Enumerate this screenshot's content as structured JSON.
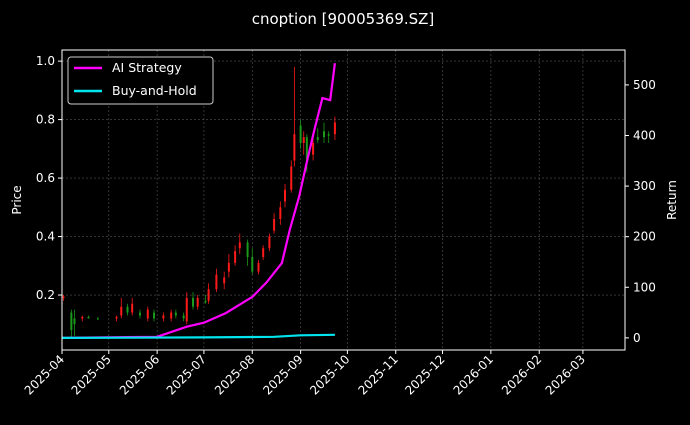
{
  "chart_data": {
    "type": "line",
    "title": "cnoption [90005369.SZ]",
    "ylabel": "Price",
    "y2label": "Return",
    "xlim": [
      "2025-04-01",
      "2026-03-28"
    ],
    "ylim": [
      0.012,
      1.038
    ],
    "y2lim": [
      -24,
      569
    ],
    "xticks": [
      "2025-04",
      "2025-05",
      "2025-06",
      "2025-07",
      "2025-08",
      "2025-09",
      "2025-10",
      "2025-11",
      "2025-12",
      "2026-01",
      "2026-02",
      "2026-03"
    ],
    "yticks": [
      0.2,
      0.4,
      0.6,
      0.8,
      1.0
    ],
    "y2ticks": [
      0,
      100,
      200,
      300,
      400,
      500
    ],
    "grid": true,
    "legend_position": "top-left",
    "colors": {
      "up": "#ff1a1a",
      "down": "#1a9a1a",
      "strategy": "#ff00ff",
      "buyhold": "#00e5ee",
      "background": "#000000"
    },
    "candles": [
      [
        "2025-04-02",
        0.19,
        0.2,
        0.18,
        0.195
      ],
      [
        "2025-04-07",
        0.14,
        0.15,
        0.05,
        0.08
      ],
      [
        "2025-04-09",
        0.12,
        0.15,
        0.06,
        0.1
      ],
      [
        "2025-04-14",
        0.12,
        0.13,
        0.11,
        0.125
      ],
      [
        "2025-04-18",
        0.125,
        0.13,
        0.12,
        0.12
      ],
      [
        "2025-04-24",
        0.12,
        0.125,
        0.115,
        0.118
      ],
      [
        "2025-05-06",
        0.12,
        0.13,
        0.11,
        0.125
      ],
      [
        "2025-05-09",
        0.13,
        0.19,
        0.12,
        0.16
      ],
      [
        "2025-05-13",
        0.16,
        0.17,
        0.13,
        0.14
      ],
      [
        "2025-05-16",
        0.14,
        0.19,
        0.13,
        0.17
      ],
      [
        "2025-05-21",
        0.14,
        0.15,
        0.12,
        0.13
      ],
      [
        "2025-05-26",
        0.12,
        0.16,
        0.11,
        0.15
      ],
      [
        "2025-05-30",
        0.14,
        0.15,
        0.11,
        0.12
      ],
      [
        "2025-06-05",
        0.12,
        0.14,
        0.11,
        0.13
      ],
      [
        "2025-06-10",
        0.12,
        0.15,
        0.11,
        0.14
      ],
      [
        "2025-06-13",
        0.14,
        0.15,
        0.12,
        0.13
      ],
      [
        "2025-06-18",
        0.13,
        0.14,
        0.11,
        0.12
      ],
      [
        "2025-06-20",
        0.11,
        0.21,
        0.1,
        0.19
      ],
      [
        "2025-06-24",
        0.19,
        0.21,
        0.15,
        0.16
      ],
      [
        "2025-06-27",
        0.16,
        0.2,
        0.15,
        0.19
      ],
      [
        "2025-07-02",
        0.18,
        0.2,
        0.17,
        0.175
      ],
      [
        "2025-07-04",
        0.18,
        0.24,
        0.17,
        0.22
      ],
      [
        "2025-07-09",
        0.22,
        0.29,
        0.21,
        0.27
      ],
      [
        "2025-07-14",
        0.24,
        0.28,
        0.22,
        0.26
      ],
      [
        "2025-07-17",
        0.28,
        0.34,
        0.26,
        0.31
      ],
      [
        "2025-07-21",
        0.31,
        0.37,
        0.3,
        0.35
      ],
      [
        "2025-07-24",
        0.36,
        0.41,
        0.34,
        0.38
      ],
      [
        "2025-07-29",
        0.38,
        0.39,
        0.3,
        0.33
      ],
      [
        "2025-08-01",
        0.33,
        0.36,
        0.27,
        0.28
      ],
      [
        "2025-08-05",
        0.28,
        0.32,
        0.27,
        0.31
      ],
      [
        "2025-08-08",
        0.33,
        0.37,
        0.32,
        0.36
      ],
      [
        "2025-08-12",
        0.36,
        0.41,
        0.35,
        0.4
      ],
      [
        "2025-08-15",
        0.42,
        0.48,
        0.41,
        0.46
      ],
      [
        "2025-08-19",
        0.46,
        0.52,
        0.44,
        0.5
      ],
      [
        "2025-08-22",
        0.52,
        0.58,
        0.5,
        0.56
      ],
      [
        "2025-08-26",
        0.56,
        0.66,
        0.55,
        0.64
      ],
      [
        "2025-08-28",
        0.66,
        0.98,
        0.64,
        0.75
      ],
      [
        "2025-09-01",
        0.78,
        0.8,
        0.7,
        0.72
      ],
      [
        "2025-09-03",
        0.72,
        0.76,
        0.68,
        0.74
      ],
      [
        "2025-09-05",
        0.74,
        0.75,
        0.62,
        0.66
      ],
      [
        "2025-09-09",
        0.68,
        0.74,
        0.66,
        0.72
      ],
      [
        "2025-09-12",
        0.74,
        0.77,
        0.72,
        0.73
      ],
      [
        "2025-09-16",
        0.76,
        0.79,
        0.72,
        0.74
      ],
      [
        "2025-09-19",
        0.75,
        0.76,
        0.72,
        0.745
      ],
      [
        "2025-09-23",
        0.75,
        0.81,
        0.73,
        0.79
      ]
    ],
    "series": [
      {
        "name": "AI Strategy",
        "axis": "right",
        "x": [
          "2025-04-01",
          "2025-06-01",
          "2025-06-20",
          "2025-07-01",
          "2025-07-15",
          "2025-08-01",
          "2025-08-10",
          "2025-08-20",
          "2025-08-25",
          "2025-08-31",
          "2025-09-05",
          "2025-09-10",
          "2025-09-15",
          "2025-09-20",
          "2025-09-23"
        ],
        "values": [
          0,
          2,
          22,
          30,
          49,
          81,
          109,
          148,
          213,
          279,
          348,
          413,
          474,
          470,
          543
        ]
      },
      {
        "name": "Buy-and-Hold",
        "axis": "right",
        "x": [
          "2025-04-01",
          "2025-07-01",
          "2025-08-15",
          "2025-09-01",
          "2025-09-23"
        ],
        "values": [
          0,
          1,
          2,
          5,
          6
        ]
      }
    ]
  }
}
